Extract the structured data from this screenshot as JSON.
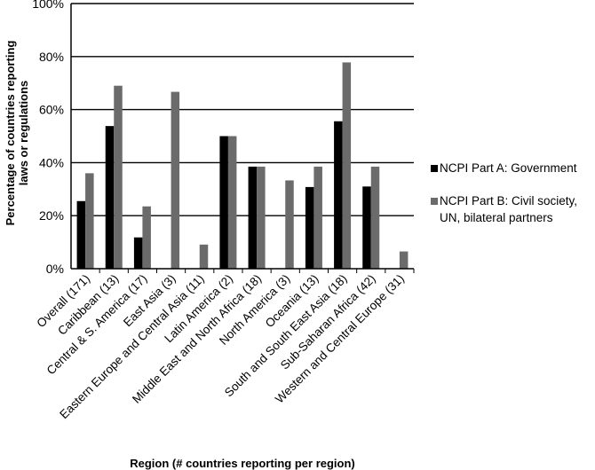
{
  "chart_data": {
    "type": "bar",
    "ylabel": [
      "Percentage of countries reporting",
      "laws or regulations"
    ],
    "xlabel": "Region (# countries reporting per region)",
    "ylim": [
      0,
      100
    ],
    "yticks": [
      0,
      20,
      40,
      60,
      80,
      100
    ],
    "ytick_labels": [
      "0%",
      "20%",
      "40%",
      "60%",
      "80%",
      "100%"
    ],
    "grid": true,
    "legend_position": "right",
    "categories": [
      "Overall (171)",
      "Caribbean (13)",
      "Central & S. America (17)",
      "East Asia (3)",
      "Eastern Europe and Central Asia (11)",
      "Latin America (2)",
      "Middle East and North Africa (18)",
      "North America (3)",
      "Oceania (13)",
      "South and South East Asia (18)",
      "Sub-Saharan Africa (42)",
      "Western and Central Europe (31)"
    ],
    "series": [
      {
        "name": "NCPI Part A: Government",
        "color": "#000000",
        "values": [
          25.5,
          53.8,
          11.8,
          0,
          0,
          50,
          38.5,
          0,
          30.8,
          55.6,
          31,
          0
        ]
      },
      {
        "name": "NCPI Part B: Civil society, UN, bilateral partners",
        "color": "#6b6b6b",
        "values": [
          36,
          69,
          23.5,
          66.7,
          9.1,
          50,
          38.5,
          33.3,
          38.5,
          77.8,
          38.5,
          6.5
        ]
      }
    ]
  },
  "legend": {
    "items": [
      {
        "label": "NCPI Part A: Government",
        "color": "#000000"
      },
      {
        "label": "NCPI Part B: Civil society, UN, bilateral partners",
        "color": "#6b6b6b"
      }
    ]
  }
}
